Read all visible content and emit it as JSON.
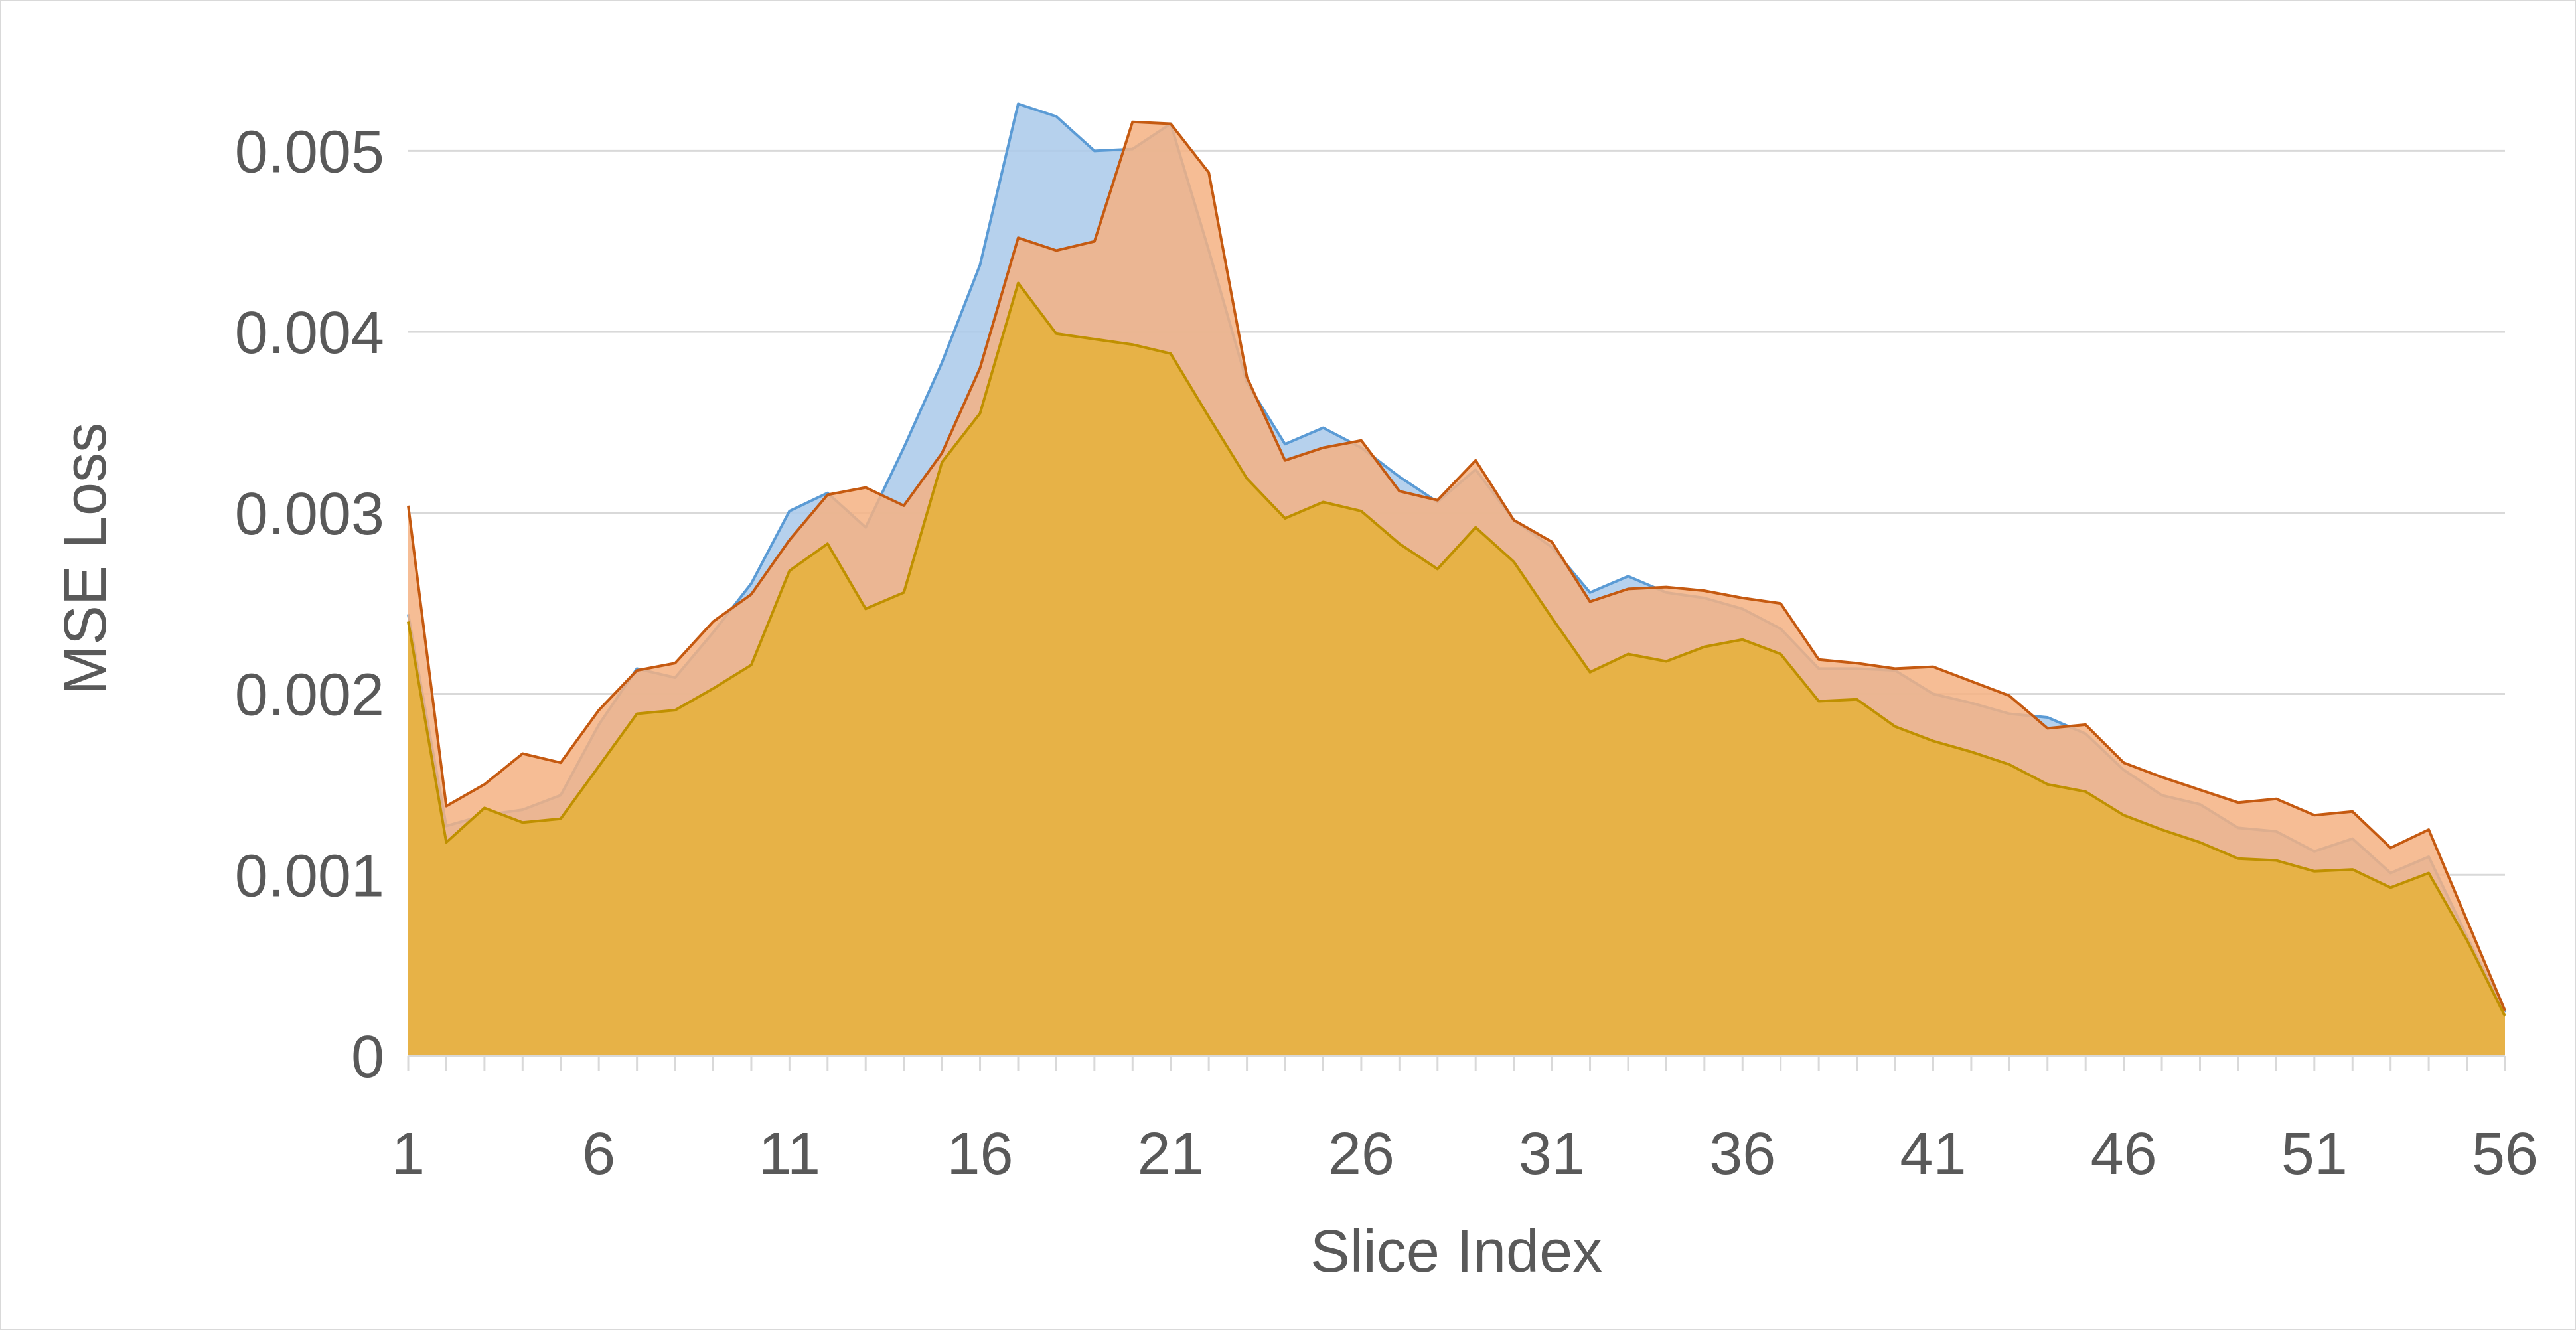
{
  "chart_data": {
    "type": "area",
    "title": "",
    "xlabel": "Slice Index",
    "ylabel": "MSE Loss",
    "x": [
      1,
      2,
      3,
      4,
      5,
      6,
      7,
      8,
      9,
      10,
      11,
      12,
      13,
      14,
      15,
      16,
      17,
      18,
      19,
      20,
      21,
      22,
      23,
      24,
      25,
      26,
      27,
      28,
      29,
      30,
      31,
      32,
      33,
      34,
      35,
      36,
      37,
      38,
      39,
      40,
      41,
      42,
      43,
      44,
      45,
      46,
      47,
      48,
      49,
      50,
      51,
      52,
      53,
      54,
      55,
      56
    ],
    "x_ticks": [
      "1",
      "6",
      "11",
      "16",
      "21",
      "26",
      "31",
      "36",
      "41",
      "46",
      "51",
      "56"
    ],
    "y_ticks": [
      "0",
      "0.001",
      "0.002",
      "0.003",
      "0.004",
      "0.005"
    ],
    "ylim": [
      0,
      0.0055
    ],
    "grid": true,
    "legend": "none",
    "series": [
      {
        "color": "#5b9bd5",
        "fill": "#a9c9ea",
        "values": [
          0.00244,
          0.00127,
          0.00133,
          0.00136,
          0.00144,
          0.00183,
          0.00214,
          0.00209,
          0.00234,
          0.00261,
          0.00301,
          0.00311,
          0.00292,
          0.00336,
          0.00383,
          0.00437,
          0.00526,
          0.00519,
          0.005,
          0.00501,
          0.00515,
          0.00445,
          0.00372,
          0.00338,
          0.00347,
          0.00336,
          0.0032,
          0.00306,
          0.00324,
          0.00296,
          0.00281,
          0.00256,
          0.00265,
          0.00256,
          0.00253,
          0.00247,
          0.00236,
          0.00214,
          0.00214,
          0.00213,
          0.002,
          0.00195,
          0.00189,
          0.00187,
          0.00178,
          0.00158,
          0.00144,
          0.00139,
          0.00126,
          0.00124,
          0.00113,
          0.0012,
          0.00101,
          0.0011,
          0.00066,
          0.00024
        ]
      },
      {
        "color": "#c55a11",
        "fill": "#f4b183",
        "values": [
          0.00304,
          0.00138,
          0.0015,
          0.00167,
          0.00162,
          0.00191,
          0.00213,
          0.00217,
          0.0024,
          0.00255,
          0.00285,
          0.0031,
          0.00314,
          0.00304,
          0.00333,
          0.0038,
          0.00452,
          0.00445,
          0.0045,
          0.00516,
          0.00515,
          0.00488,
          0.00375,
          0.00329,
          0.00336,
          0.0034,
          0.00312,
          0.00307,
          0.00329,
          0.00296,
          0.00284,
          0.00251,
          0.00258,
          0.00259,
          0.00257,
          0.00253,
          0.0025,
          0.00219,
          0.00217,
          0.00214,
          0.00215,
          0.00207,
          0.00199,
          0.00181,
          0.00183,
          0.00162,
          0.00154,
          0.00147,
          0.0014,
          0.00142,
          0.00133,
          0.00135,
          0.00115,
          0.00125,
          0.00075,
          0.00025
        ]
      },
      {
        "color": "#bf9000",
        "fill": "#e6b244",
        "values": [
          0.0024,
          0.00118,
          0.00137,
          0.00129,
          0.00131,
          0.0016,
          0.00189,
          0.00191,
          0.00203,
          0.00216,
          0.00268,
          0.00283,
          0.00247,
          0.00256,
          0.00328,
          0.00355,
          0.00427,
          0.00399,
          0.00396,
          0.00393,
          0.00388,
          0.00353,
          0.00319,
          0.00297,
          0.00306,
          0.00301,
          0.00283,
          0.00269,
          0.00292,
          0.00273,
          0.00242,
          0.00212,
          0.00222,
          0.00218,
          0.00226,
          0.0023,
          0.00222,
          0.00196,
          0.00197,
          0.00182,
          0.00174,
          0.00168,
          0.00161,
          0.0015,
          0.00146,
          0.00133,
          0.00125,
          0.00118,
          0.00109,
          0.00108,
          0.00102,
          0.00103,
          0.00093,
          0.00101,
          0.00064,
          0.00022
        ]
      }
    ]
  }
}
